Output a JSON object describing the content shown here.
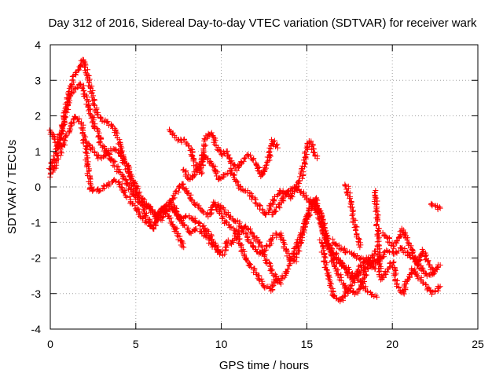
{
  "chart_data": {
    "type": "scatter",
    "title": "Day 312 of 2016, Sidereal Day-to-day VTEC variation (SDTVAR) for receiver wark",
    "xlabel": "GPS time / hours",
    "ylabel": "SDTVAR / TECUs",
    "xlim": [
      0,
      25
    ],
    "ylim": [
      -4,
      4
    ],
    "xticks": [
      "0",
      "5",
      "10",
      "15",
      "20",
      "25"
    ],
    "yticks": [
      "-4",
      "-3",
      "-2",
      "-1",
      "0",
      "1",
      "2",
      "3",
      "4"
    ],
    "grid": true,
    "legend": "none",
    "marker": "plus",
    "color": "#ff0000",
    "series": [
      {
        "x": [
          0.0,
          0.2,
          0.5,
          0.8,
          1.1,
          1.4,
          1.7,
          1.9,
          2.1,
          2.4,
          2.7,
          3.0,
          3.4,
          3.8,
          4.2,
          4.6,
          5.0,
          5.4,
          5.7,
          6.0,
          6.3,
          6.6,
          7.0,
          7.4,
          7.8
        ],
        "y": [
          1.6,
          1.4,
          1.1,
          1.9,
          2.6,
          3.1,
          3.4,
          3.6,
          3.3,
          2.7,
          2.1,
          1.9,
          1.8,
          1.6,
          1.0,
          0.5,
          -0.2,
          -0.5,
          -0.9,
          -1.2,
          -0.8,
          -0.6,
          -0.9,
          -1.3,
          -1.7
        ]
      },
      {
        "x": [
          0.0,
          0.3,
          0.6,
          0.9,
          1.2,
          1.5,
          1.8,
          2.1,
          2.4,
          2.7,
          3.0,
          3.4,
          3.8,
          4.2,
          4.6,
          5.0,
          5.4,
          5.8,
          6.2,
          6.6,
          7.0,
          7.3,
          7.6,
          7.9,
          8.2,
          8.6,
          9.0,
          9.4,
          9.8,
          10.1,
          10.4
        ],
        "y": [
          0.5,
          0.9,
          1.5,
          2.1,
          2.6,
          2.8,
          2.9,
          2.5,
          2.0,
          1.6,
          1.2,
          0.9,
          0.6,
          0.3,
          0.0,
          -0.3,
          -0.5,
          -0.6,
          -0.8,
          -0.6,
          -0.4,
          -0.6,
          -0.9,
          -1.1,
          -1.3,
          -1.2,
          -1.3,
          -1.6,
          -1.8,
          -1.9,
          -1.5
        ]
      },
      {
        "x": [
          0.0,
          0.3,
          0.6,
          0.9,
          1.2,
          1.5,
          1.8,
          2.0,
          2.2,
          2.4,
          2.6,
          2.9,
          3.2,
          3.5,
          3.8,
          4.1,
          4.4,
          4.7,
          5.0,
          5.3,
          5.6,
          5.9,
          6.2,
          6.5,
          6.8,
          7.1,
          7.4,
          7.7,
          8.0,
          8.3,
          8.7,
          9.1,
          9.5,
          9.9
        ],
        "y": [
          0.3,
          0.6,
          1.0,
          1.4,
          1.7,
          2.0,
          1.8,
          1.3,
          0.5,
          -0.1,
          -0.1,
          -0.1,
          0.0,
          0.1,
          0.2,
          0.1,
          -0.2,
          -0.4,
          -0.6,
          -0.8,
          -1.0,
          -1.1,
          -0.9,
          -0.7,
          -0.5,
          -0.6,
          -0.8,
          -0.9,
          -0.8,
          -0.9,
          -1.0,
          -1.2,
          -1.5,
          -1.9
        ]
      },
      {
        "x": [
          2.1,
          2.5,
          2.9,
          3.3,
          3.7,
          4.1,
          4.5,
          4.9,
          5.3,
          5.7,
          6.1,
          6.5,
          6.9,
          7.3,
          7.7,
          8.1,
          8.5,
          8.9,
          9.3,
          9.6,
          9.9,
          10.2,
          10.5,
          10.8,
          11.1,
          11.4,
          11.7,
          12.0,
          12.3,
          12.6,
          12.9,
          13.2
        ],
        "y": [
          1.3,
          1.0,
          0.8,
          0.9,
          1.1,
          0.9,
          0.5,
          0.1,
          -0.3,
          -0.5,
          -0.8,
          -0.9,
          -0.6,
          -0.2,
          0.1,
          -0.2,
          -0.5,
          -0.7,
          -0.8,
          -0.5,
          -0.7,
          -1.0,
          -1.1,
          -1.2,
          -1.6,
          -2.0,
          -2.2,
          -2.4,
          -2.6,
          -2.8,
          -2.9,
          -2.6
        ]
      },
      {
        "x": [
          7.0,
          7.3,
          7.6,
          7.9,
          8.2,
          8.5,
          8.8,
          9.1,
          9.4,
          9.7,
          10.0,
          10.3,
          10.6,
          10.9,
          11.2,
          11.5,
          11.8,
          12.1,
          12.4,
          12.7,
          13.0,
          13.3
        ],
        "y": [
          1.6,
          1.4,
          1.3,
          1.3,
          1.1,
          0.6,
          0.4,
          1.4,
          1.5,
          1.2,
          0.9,
          1.0,
          0.7,
          0.5,
          0.7,
          0.9,
          0.8,
          0.6,
          0.3,
          0.7,
          1.3,
          1.1
        ]
      },
      {
        "x": [
          7.8,
          8.1,
          8.4,
          8.7,
          9.0,
          9.3,
          9.6,
          9.9,
          10.2,
          10.5,
          10.8,
          11.1,
          11.4,
          11.7,
          12.0,
          12.3,
          12.6,
          12.9,
          13.2,
          13.5,
          13.8,
          14.1,
          14.4,
          14.7,
          15.0,
          15.2,
          15.4,
          15.6
        ],
        "y": [
          0.5,
          0.2,
          0.3,
          0.6,
          0.9,
          0.7,
          0.5,
          0.2,
          0.3,
          0.5,
          0.2,
          0.0,
          -0.1,
          -0.2,
          -0.4,
          -0.6,
          -0.8,
          -0.5,
          -0.3,
          -0.1,
          -0.2,
          -0.3,
          0.0,
          0.3,
          1.1,
          1.3,
          1.0,
          0.8
        ]
      },
      {
        "x": [
          9.5,
          9.8,
          10.1,
          10.4,
          10.7,
          11.0,
          11.3,
          11.6,
          11.9,
          12.2,
          12.5,
          12.8,
          13.1,
          13.4,
          13.7,
          14.0,
          14.3,
          14.6,
          14.9,
          15.2,
          15.5,
          15.8,
          16.1,
          16.4,
          16.7,
          17.0,
          17.3,
          17.6,
          17.9,
          18.2,
          18.5,
          18.8,
          19.1
        ],
        "y": [
          -0.4,
          -0.5,
          -0.6,
          -0.8,
          -0.9,
          -1.0,
          -1.2,
          -1.5,
          -1.7,
          -1.9,
          -1.8,
          -1.6,
          -1.4,
          -1.3,
          -1.7,
          -2.0,
          -2.1,
          -1.6,
          -1.0,
          -0.6,
          -0.3,
          -0.8,
          -1.5,
          -1.8,
          -1.9,
          -2.1,
          -2.4,
          -2.6,
          -2.5,
          -2.7,
          -2.9,
          -3.0,
          -3.1
        ]
      },
      {
        "x": [
          10.6,
          11.0,
          11.4,
          11.8,
          12.2,
          12.6,
          13.0,
          13.4,
          13.8,
          14.2,
          14.6,
          15.0,
          15.4,
          15.8,
          16.2,
          16.6,
          17.0,
          17.4,
          17.8,
          18.2,
          18.6,
          19.0
        ],
        "y": [
          -1.6,
          -1.3,
          -1.1,
          -1.3,
          -1.6,
          -2.0,
          -2.4,
          -2.7,
          -2.4,
          -1.9,
          -1.4,
          -0.9,
          -0.4,
          -0.7,
          -1.5,
          -2.0,
          -2.2,
          -2.3,
          -2.5,
          -2.4,
          -2.2,
          -2.3
        ]
      },
      {
        "x": [
          13.0,
          13.4,
          13.8,
          14.2,
          14.6,
          15.0,
          15.4,
          15.8,
          16.2,
          16.6,
          17.0,
          17.4,
          17.8,
          18.2,
          18.6,
          19.0
        ],
        "y": [
          -0.8,
          -0.5,
          -0.2,
          0.0,
          -0.1,
          -0.3,
          -0.5,
          -1.0,
          -1.6,
          -2.2,
          -2.6,
          -2.9,
          -3.0,
          -2.8,
          -2.2,
          -1.8
        ]
      },
      {
        "x": [
          15.8,
          16.2,
          16.6,
          17.0,
          17.4,
          17.8,
          18.2,
          18.6,
          19.0,
          19.4
        ],
        "y": [
          -1.5,
          -2.4,
          -3.1,
          -3.2,
          -2.9,
          -2.6,
          -2.2,
          -2.0,
          -2.1,
          -2.0
        ]
      },
      {
        "x": [
          16.5,
          16.9,
          17.3,
          17.7,
          18.1,
          18.5,
          18.9,
          19.3,
          19.7,
          20.1,
          20.5,
          20.9,
          21.3,
          21.7,
          22.1,
          22.5,
          22.8
        ],
        "y": [
          -1.5,
          -1.7,
          -1.8,
          -1.9,
          -2.0,
          -2.1,
          -2.2,
          -2.0,
          -1.8,
          -1.9,
          -1.7,
          -1.9,
          -2.0,
          -2.3,
          -2.5,
          -2.4,
          -2.2
        ]
      },
      {
        "x": [
          17.3,
          17.5,
          17.7,
          17.9,
          18.1
        ],
        "y": [
          0.1,
          -0.3,
          -0.8,
          -1.3,
          -1.7
        ]
      },
      {
        "x": [
          19.0,
          19.1,
          19.2,
          19.3,
          19.4,
          19.7,
          20.0,
          20.3,
          20.6,
          20.9,
          21.2,
          21.5,
          21.8,
          22.1,
          22.4,
          22.8
        ],
        "y": [
          -0.1,
          -0.8,
          -1.8,
          -2.5,
          -2.6,
          -2.3,
          -2.1,
          -2.8,
          -3.0,
          -2.6,
          -2.3,
          -2.5,
          -2.7,
          -2.9,
          -3.0,
          -2.8
        ]
      },
      {
        "x": [
          19.4,
          19.7,
          20.0,
          20.3,
          20.6,
          20.9,
          21.2,
          21.5,
          21.8,
          22.1,
          22.4
        ],
        "y": [
          -1.3,
          -1.4,
          -1.7,
          -1.5,
          -1.2,
          -1.5,
          -1.9,
          -2.2,
          -1.8,
          -2.1,
          -2.4
        ]
      },
      {
        "x": [
          22.2,
          22.4,
          22.6,
          22.8
        ],
        "y": [
          -0.5,
          -0.5,
          -0.6,
          -0.6
        ]
      }
    ]
  }
}
